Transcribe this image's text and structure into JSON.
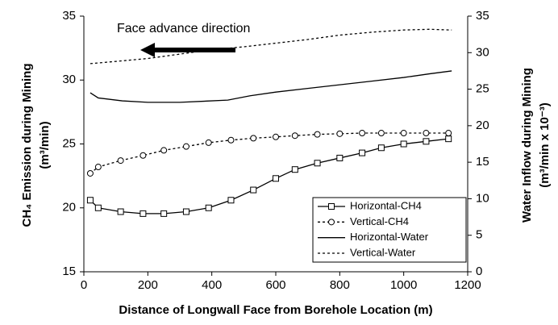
{
  "chart_data": {
    "type": "line",
    "annotation": "Face advance direction",
    "xlabel": "Distance of Longwall Face from Borehole Location (m)",
    "ylabel": [
      "CH₄ Emission during Mining",
      "(m³/min)"
    ],
    "y2label": [
      "Water Inflow during Mining",
      "(m³/min x 10⁻³)"
    ],
    "xlim": [
      0,
      1200
    ],
    "xticks": [
      0,
      200,
      400,
      600,
      800,
      1000,
      1200
    ],
    "ylim": [
      15,
      35
    ],
    "yticks": [
      15,
      20,
      25,
      30,
      35
    ],
    "y2lim": [
      0,
      35
    ],
    "y2ticks": [
      0,
      5,
      10,
      15,
      20,
      25,
      30,
      35
    ],
    "legend": "lower right",
    "series": [
      {
        "name": "Horizontal-CH4",
        "color": "#000000",
        "marker": "square",
        "dash": "solid",
        "x": [
          20,
          45,
          115,
          185,
          250,
          320,
          390,
          460,
          530,
          600,
          660,
          730,
          800,
          870,
          930,
          1000,
          1070,
          1140
        ],
        "values": [
          20.6,
          20.0,
          19.7,
          19.55,
          19.55,
          19.7,
          20.0,
          20.6,
          21.4,
          22.3,
          23.0,
          23.5,
          23.9,
          24.3,
          24.7,
          25.0,
          25.2,
          25.4
        ]
      },
      {
        "name": "Vertical-CH4",
        "color": "#000000",
        "marker": "circle",
        "dash": "dotted",
        "x": [
          20,
          45,
          115,
          185,
          250,
          320,
          390,
          460,
          530,
          600,
          660,
          730,
          800,
          870,
          930,
          1000,
          1070,
          1140
        ],
        "values": [
          22.7,
          23.2,
          23.7,
          24.1,
          24.5,
          24.8,
          25.1,
          25.3,
          25.45,
          25.55,
          25.65,
          25.75,
          25.8,
          25.85,
          25.85,
          25.85,
          25.85,
          25.85
        ]
      },
      {
        "name": "Horizontal-Water",
        "color": "#000000",
        "marker": "none",
        "dash": "solid",
        "axis": "y2",
        "x": [
          20,
          45,
          120,
          200,
          300,
          450,
          520,
          600,
          700,
          800,
          900,
          1000,
          1080,
          1150
        ],
        "values": [
          24.5,
          23.8,
          23.4,
          23.2,
          23.2,
          23.5,
          24.1,
          24.6,
          25.1,
          25.6,
          26.1,
          26.6,
          27.1,
          27.5
        ]
      },
      {
        "name": "Vertical-Water",
        "color": "#000000",
        "marker": "none",
        "dash": "dotted",
        "axis": "y2",
        "x": [
          20,
          100,
          200,
          300,
          400,
          500,
          600,
          700,
          800,
          900,
          1000,
          1080,
          1150
        ],
        "values": [
          28.5,
          28.8,
          29.2,
          29.8,
          30.4,
          30.8,
          31.3,
          31.8,
          32.4,
          32.8,
          33.1,
          33.2,
          33.1
        ]
      }
    ]
  }
}
